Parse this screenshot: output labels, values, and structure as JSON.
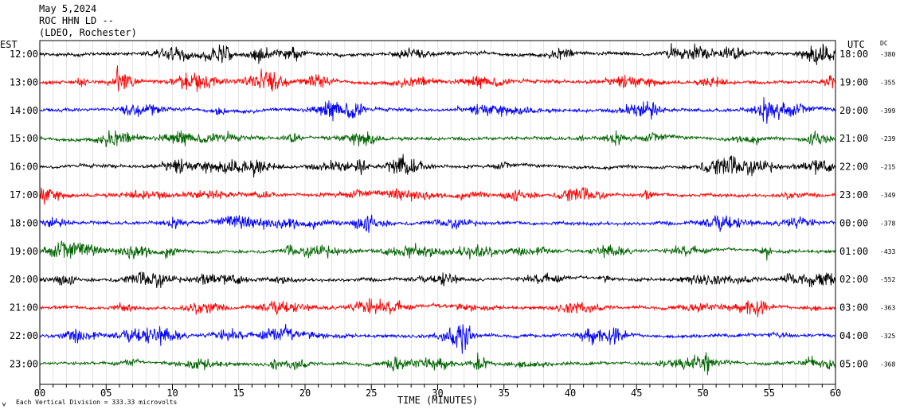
{
  "header": {
    "date": "May 5,2024",
    "station": "ROC HHN LD --",
    "network": "(LDEO, Rochester)"
  },
  "chart_data": {
    "type": "line",
    "subtype": "helicorder seismogram",
    "left_axis_label": "EST",
    "right_axis_label": "UTC",
    "dc_label": "DC",
    "xlabel": "TIME (MINUTES)",
    "xlim": [
      0,
      60
    ],
    "x_ticks": [
      "00",
      "05",
      "10",
      "15",
      "20",
      "25",
      "30",
      "35",
      "40",
      "45",
      "50",
      "55",
      "60"
    ],
    "grid": "vertical lines every minute",
    "scale_note": "Each Vertical Division =  333.33 microvolts",
    "trace_colors": [
      "#000000",
      "#ff0000",
      "#0000ff",
      "#006400"
    ],
    "rows": [
      {
        "est": "12:00",
        "utc": "18:00",
        "dc": "-380"
      },
      {
        "est": "13:00",
        "utc": "19:00",
        "dc": "-355"
      },
      {
        "est": "14:00",
        "utc": "20:00",
        "dc": "-399"
      },
      {
        "est": "15:00",
        "utc": "21:00",
        "dc": "-239"
      },
      {
        "est": "16:00",
        "utc": "22:00",
        "dc": "-215"
      },
      {
        "est": "17:00",
        "utc": "23:00",
        "dc": "-349"
      },
      {
        "est": "18:00",
        "utc": "00:00",
        "dc": "-378"
      },
      {
        "est": "19:00",
        "utc": "01:00",
        "dc": "-433"
      },
      {
        "est": "20:00",
        "utc": "02:00",
        "dc": "-552"
      },
      {
        "est": "21:00",
        "utc": "03:00",
        "dc": "-363"
      },
      {
        "est": "22:00",
        "utc": "04:00",
        "dc": "-325"
      },
      {
        "est": "23:00",
        "utc": "05:00",
        "dc": "-368"
      }
    ]
  }
}
